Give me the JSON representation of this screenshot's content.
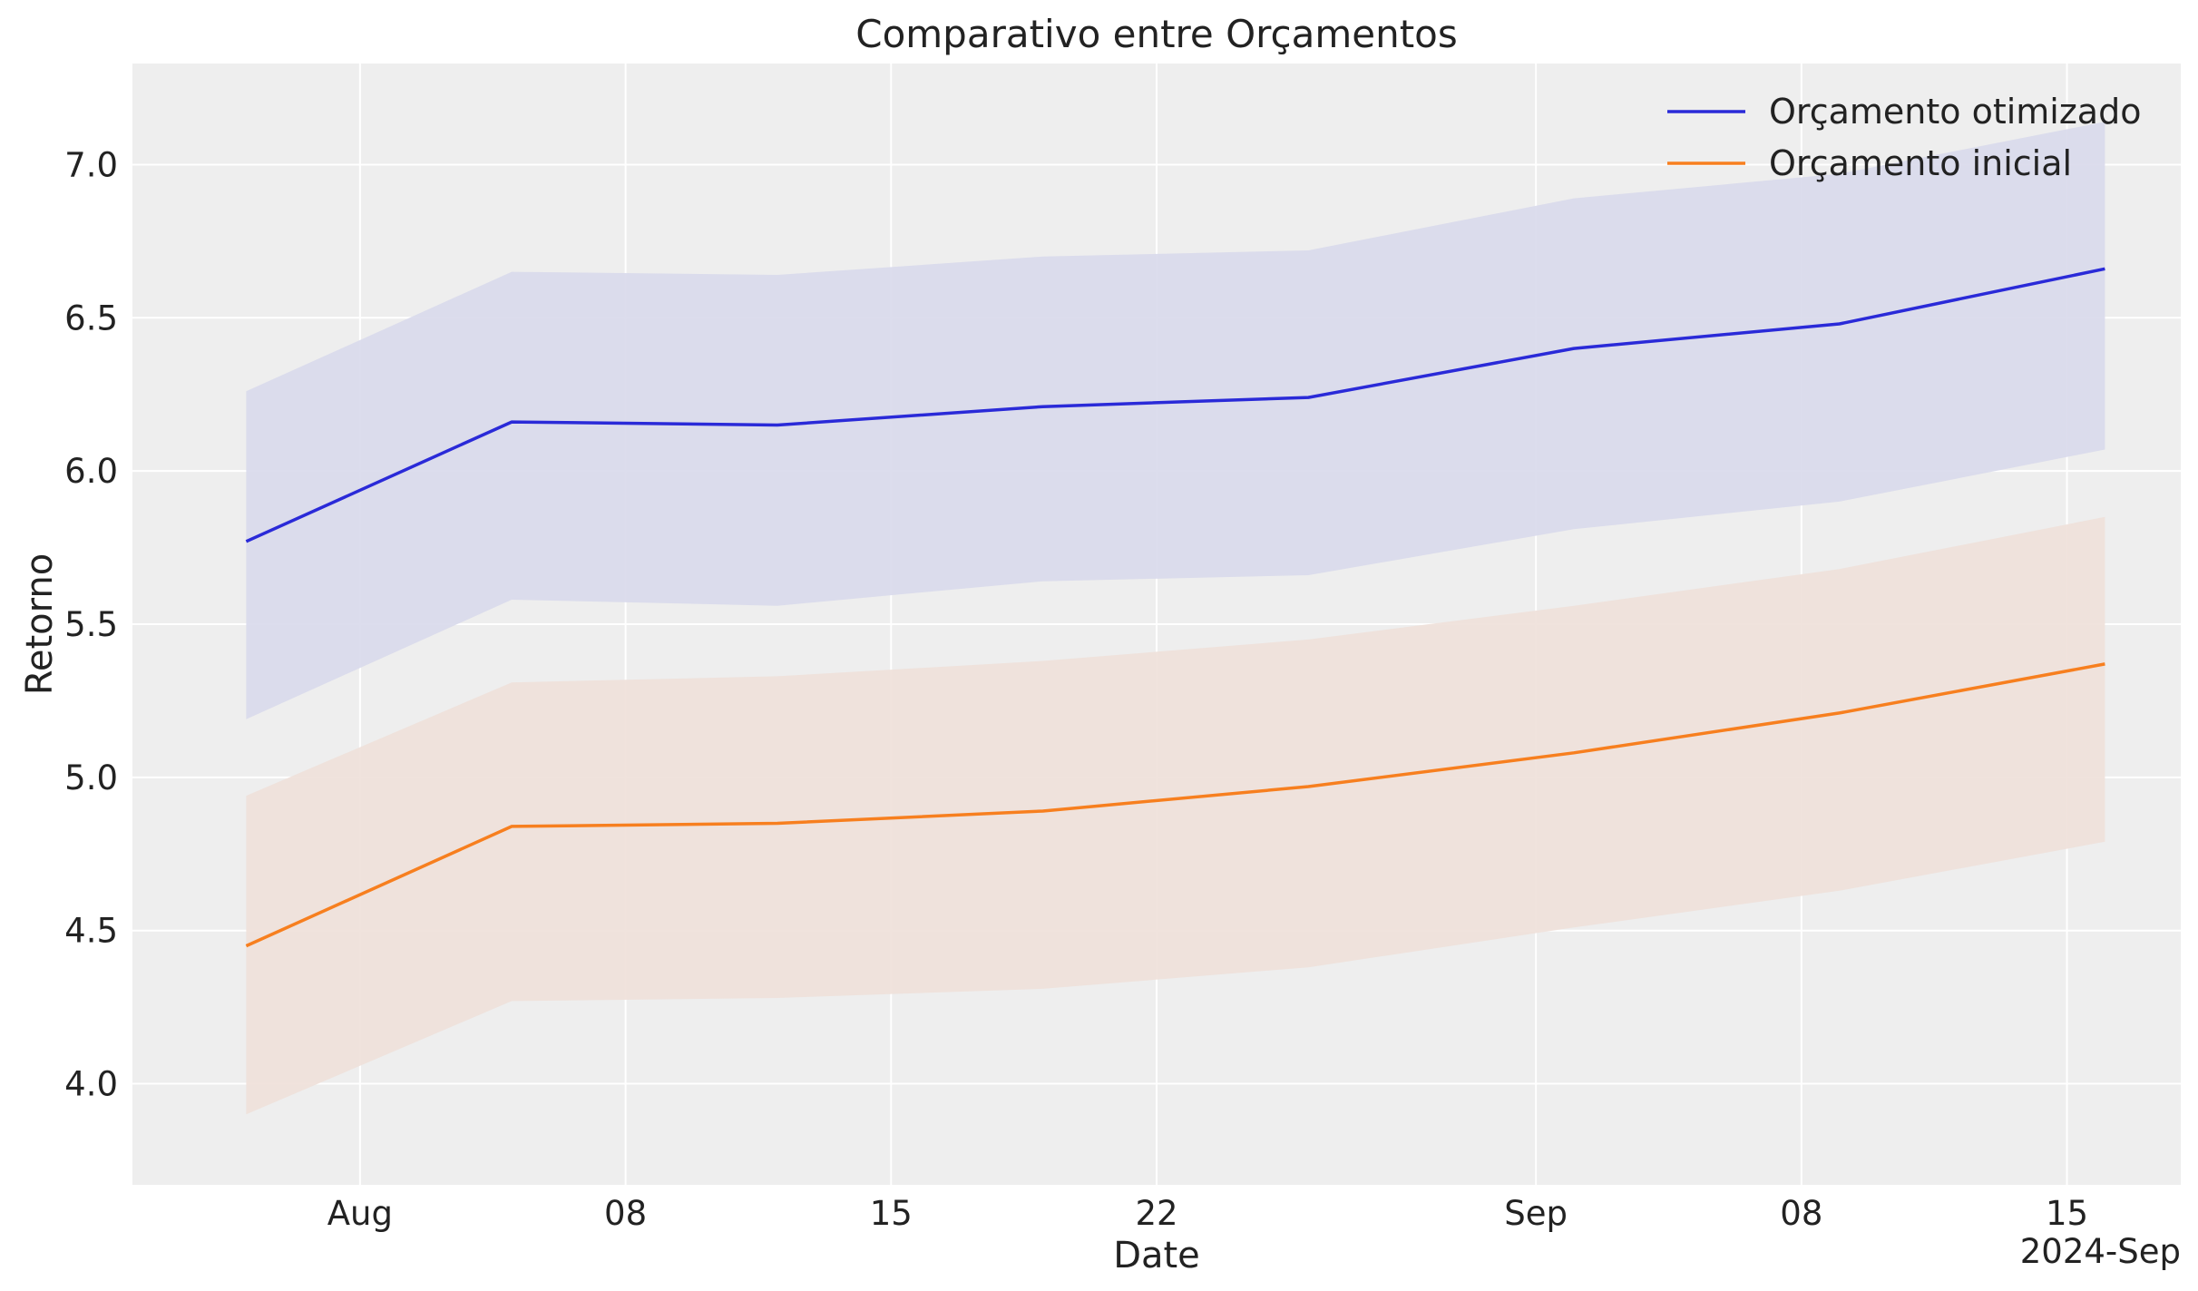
{
  "chart_data": {
    "type": "line",
    "title": "Comparativo entre Orçamentos",
    "xlabel": "Date",
    "ylabel": "Retorno",
    "x_offset_label": "2024-Sep",
    "x_tick_labels": [
      "Aug",
      "08",
      "15",
      "22",
      "Sep",
      "08",
      "15"
    ],
    "x_tick_dates": [
      "2024-08-01",
      "2024-08-08",
      "2024-08-15",
      "2024-08-22",
      "2024-09-01",
      "2024-09-08",
      "2024-09-15"
    ],
    "xlim": [
      "2024-07-26",
      "2024-09-18"
    ],
    "ylim": [
      3.67,
      7.33
    ],
    "y_ticks": [
      4.0,
      4.5,
      5.0,
      5.5,
      6.0,
      6.5,
      7.0
    ],
    "grid": true,
    "legend_position": "top-right",
    "x": [
      "2024-07-29",
      "2024-08-05",
      "2024-08-12",
      "2024-08-19",
      "2024-08-26",
      "2024-09-02",
      "2024-09-09",
      "2024-09-16"
    ],
    "series": [
      {
        "name": "Orçamento otimizado",
        "color": "#2a2ad8",
        "band_color": "#d9daec",
        "values": [
          5.77,
          6.16,
          6.15,
          6.21,
          6.24,
          6.4,
          6.48,
          6.66
        ],
        "lower": [
          5.19,
          5.58,
          5.56,
          5.64,
          5.66,
          5.81,
          5.9,
          6.07
        ],
        "upper": [
          6.26,
          6.65,
          6.64,
          6.7,
          6.72,
          6.89,
          6.97,
          7.14
        ]
      },
      {
        "name": "Orçamento inicial",
        "color": "#f77f1f",
        "band_color": "#efe1da",
        "values": [
          4.45,
          4.84,
          4.85,
          4.89,
          4.97,
          5.08,
          5.21,
          5.37
        ],
        "lower": [
          3.9,
          4.27,
          4.28,
          4.31,
          4.38,
          4.51,
          4.63,
          4.79
        ],
        "upper": [
          4.94,
          5.31,
          5.33,
          5.38,
          5.45,
          5.56,
          5.68,
          5.85
        ]
      }
    ]
  }
}
